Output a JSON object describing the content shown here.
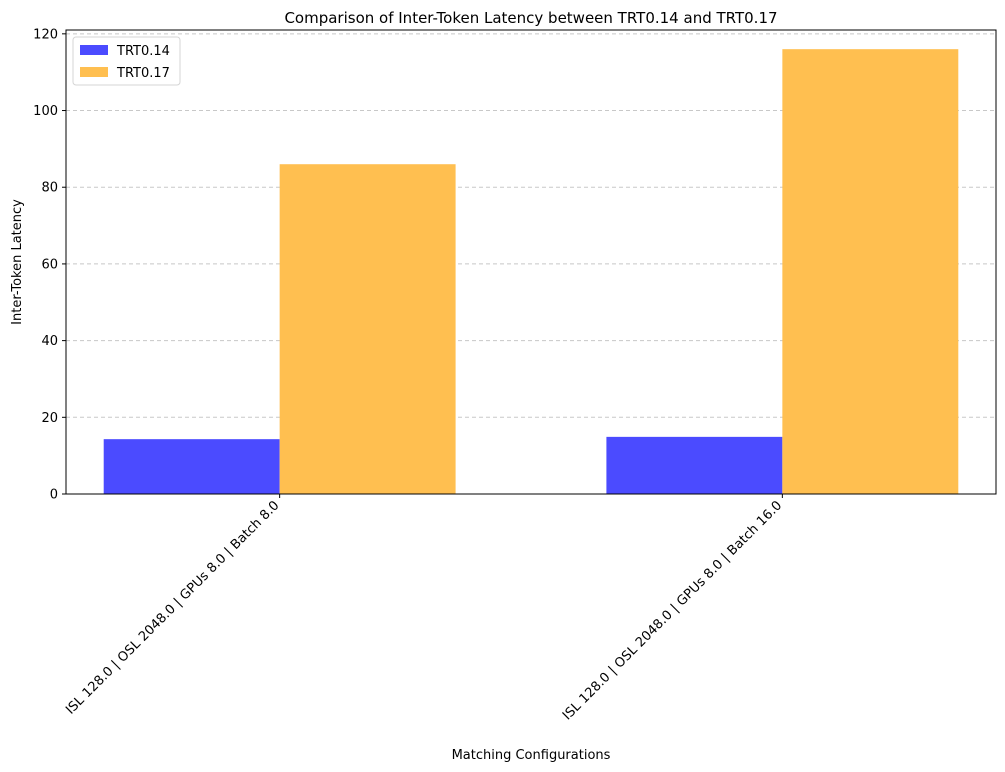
{
  "chart_data": {
    "type": "bar",
    "title": "Comparison of Inter-Token Latency between TRT0.14 and TRT0.17",
    "xlabel": "Matching Configurations",
    "ylabel": "Inter-Token Latency",
    "categories": [
      "ISL 128.0 | OSL 2048.0 | GPUs 8.0 | Batch 8.0",
      "ISL 128.0 | OSL 2048.0 | GPUs 8.0 | Batch 16.0"
    ],
    "series": [
      {
        "name": "TRT0.14",
        "values": [
          14.3,
          14.9
        ],
        "color": "#4b4bff"
      },
      {
        "name": "TRT0.17",
        "values": [
          86.0,
          116.0
        ],
        "color": "#ffbf50"
      }
    ],
    "ylim": [
      0,
      121
    ],
    "yticks": [
      0,
      20,
      40,
      60,
      80,
      100,
      120
    ],
    "grid": "horizontal dashed",
    "legend": "top-left"
  }
}
